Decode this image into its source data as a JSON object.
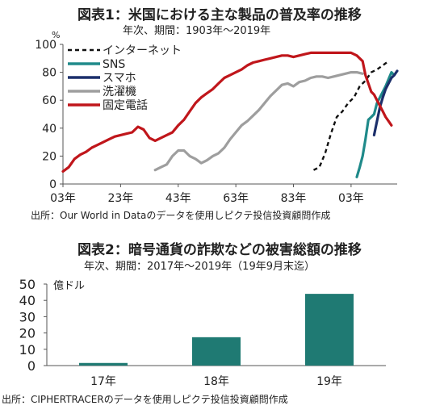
{
  "chart1": {
    "title": "図表1：米国における主な製品の普及率の推移",
    "subtitle": "年次、期間：1903年～2019年",
    "unit": "%",
    "source": "出所：Our World in Dataのデータを使用しピクテ投信投資顧問作成"
  },
  "chart2": {
    "title": "図表2：暗号通貨の詐欺などの被害総額の推移",
    "subtitle": "年次、期間：2017年～2019年（19年9月末迄）",
    "unit": "億ドル",
    "source": "出所：CIPHERTRACERのデータを使用しピクテ投信投資顧問作成"
  },
  "colors": {
    "internet": "#111111",
    "sns": "#1f8a8a",
    "smartphone": "#1c2f6b",
    "washer": "#9e9e9e",
    "landline": "#c0161b",
    "bar": "#1f7a73",
    "axis": "#555555"
  },
  "chart_data": [
    {
      "type": "line",
      "ylim": [
        0,
        100
      ],
      "yticks": [
        0,
        20,
        40,
        60,
        80,
        100
      ],
      "xlim": [
        1903,
        2019
      ],
      "xticks": [
        1903,
        1923,
        1943,
        1963,
        1983,
        2003
      ],
      "xtick_labels": [
        "03年",
        "23年",
        "43年",
        "63年",
        "83年",
        "03年"
      ],
      "legend_position": "top-left",
      "series": [
        {
          "name": "インターネット",
          "color_key": "internet",
          "dash": true,
          "points": [
            [
              1990,
              10
            ],
            [
              1992,
              12
            ],
            [
              1994,
              22
            ],
            [
              1996,
              36
            ],
            [
              1998,
              48
            ],
            [
              2000,
              52
            ],
            [
              2002,
              58
            ],
            [
              2004,
              62
            ],
            [
              2006,
              70
            ],
            [
              2008,
              74
            ],
            [
              2010,
              80
            ],
            [
              2012,
              82
            ],
            [
              2014,
              85
            ],
            [
              2016,
              88
            ]
          ]
        },
        {
          "name": "SNS",
          "color_key": "sns",
          "points": [
            [
              2005,
              5
            ],
            [
              2006,
              12
            ],
            [
              2007,
              20
            ],
            [
              2008,
              32
            ],
            [
              2009,
              46
            ],
            [
              2010,
              48
            ],
            [
              2011,
              50
            ],
            [
              2012,
              58
            ],
            [
              2013,
              62
            ],
            [
              2014,
              66
            ],
            [
              2015,
              70
            ],
            [
              2016,
              75
            ],
            [
              2017,
              80
            ],
            [
              2018,
              78
            ]
          ]
        },
        {
          "name": "スマホ",
          "color_key": "smartphone",
          "points": [
            [
              2011,
              35
            ],
            [
              2012,
              45
            ],
            [
              2013,
              55
            ],
            [
              2014,
              62
            ],
            [
              2015,
              68
            ],
            [
              2016,
              72
            ],
            [
              2017,
              76
            ],
            [
              2018,
              78
            ],
            [
              2019,
              81
            ]
          ]
        },
        {
          "name": "洗濯機",
          "color_key": "washer",
          "points": [
            [
              1935,
              10
            ],
            [
              1937,
              12
            ],
            [
              1939,
              14
            ],
            [
              1941,
              20
            ],
            [
              1943,
              24
            ],
            [
              1945,
              24
            ],
            [
              1947,
              20
            ],
            [
              1949,
              18
            ],
            [
              1951,
              15
            ],
            [
              1953,
              17
            ],
            [
              1955,
              20
            ],
            [
              1957,
              22
            ],
            [
              1959,
              26
            ],
            [
              1961,
              32
            ],
            [
              1963,
              37
            ],
            [
              1965,
              42
            ],
            [
              1967,
              45
            ],
            [
              1969,
              49
            ],
            [
              1971,
              53
            ],
            [
              1973,
              58
            ],
            [
              1975,
              63
            ],
            [
              1977,
              67
            ],
            [
              1979,
              71
            ],
            [
              1981,
              72
            ],
            [
              1983,
              70
            ],
            [
              1985,
              73
            ],
            [
              1987,
              74
            ],
            [
              1989,
              76
            ],
            [
              1991,
              77
            ],
            [
              1993,
              77
            ],
            [
              1995,
              76
            ],
            [
              1997,
              77
            ],
            [
              1999,
              78
            ],
            [
              2001,
              79
            ],
            [
              2003,
              80
            ],
            [
              2005,
              80
            ],
            [
              2007,
              79
            ]
          ]
        },
        {
          "name": "固定電話",
          "color_key": "landline",
          "points": [
            [
              1903,
              9
            ],
            [
              1905,
              12
            ],
            [
              1907,
              18
            ],
            [
              1909,
              21
            ],
            [
              1911,
              23
            ],
            [
              1913,
              26
            ],
            [
              1915,
              28
            ],
            [
              1917,
              30
            ],
            [
              1919,
              32
            ],
            [
              1921,
              34
            ],
            [
              1923,
              35
            ],
            [
              1925,
              36
            ],
            [
              1927,
              37
            ],
            [
              1929,
              41
            ],
            [
              1931,
              39
            ],
            [
              1933,
              33
            ],
            [
              1935,
              31
            ],
            [
              1937,
              33
            ],
            [
              1939,
              35
            ],
            [
              1941,
              37
            ],
            [
              1943,
              42
            ],
            [
              1945,
              46
            ],
            [
              1947,
              52
            ],
            [
              1949,
              58
            ],
            [
              1951,
              62
            ],
            [
              1953,
              65
            ],
            [
              1955,
              68
            ],
            [
              1957,
              72
            ],
            [
              1959,
              76
            ],
            [
              1961,
              78
            ],
            [
              1963,
              80
            ],
            [
              1965,
              82
            ],
            [
              1967,
              85
            ],
            [
              1969,
              87
            ],
            [
              1971,
              88
            ],
            [
              1973,
              89
            ],
            [
              1975,
              90
            ],
            [
              1977,
              91
            ],
            [
              1979,
              92
            ],
            [
              1981,
              92
            ],
            [
              1983,
              91
            ],
            [
              1985,
              92
            ],
            [
              1987,
              93
            ],
            [
              1989,
              94
            ],
            [
              1991,
              94
            ],
            [
              1993,
              94
            ],
            [
              1995,
              94
            ],
            [
              1997,
              94
            ],
            [
              1999,
              94
            ],
            [
              2001,
              94
            ],
            [
              2003,
              94
            ],
            [
              2005,
              92
            ],
            [
              2006,
              90
            ],
            [
              2007,
              88
            ],
            [
              2008,
              78
            ],
            [
              2009,
              72
            ],
            [
              2010,
              66
            ],
            [
              2011,
              64
            ],
            [
              2012,
              60
            ],
            [
              2013,
              56
            ],
            [
              2014,
              52
            ],
            [
              2015,
              48
            ],
            [
              2016,
              45
            ],
            [
              2017,
              42
            ]
          ]
        }
      ]
    },
    {
      "type": "bar",
      "categories": [
        "17年",
        "18年",
        "19年"
      ],
      "values": [
        1.6,
        17.4,
        44.0
      ],
      "ylim": [
        0,
        50
      ],
      "yticks": [
        0,
        10,
        20,
        30,
        40,
        50
      ]
    }
  ]
}
